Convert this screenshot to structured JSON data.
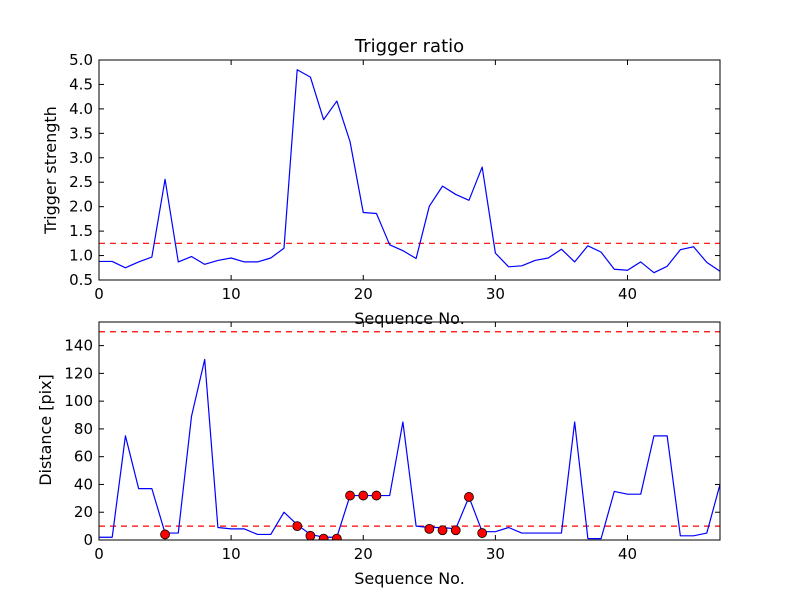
{
  "chart_data": [
    {
      "type": "line",
      "title": "Trigger ratio",
      "xlabel": "Sequence No.",
      "ylabel": "Trigger strength",
      "xlim": [
        0,
        47
      ],
      "ylim": [
        0.5,
        5.0
      ],
      "x_ticks": [
        "0",
        "10",
        "20",
        "30",
        "40"
      ],
      "y_ticks": [
        "0.5",
        "1.0",
        "1.5",
        "2.0",
        "2.5",
        "3.0",
        "3.5",
        "4.0",
        "4.5",
        "5.0"
      ],
      "grid": false,
      "series": [
        {
          "color": "#0000ff",
          "x": [
            0,
            1,
            2,
            3,
            4,
            5,
            6,
            7,
            8,
            9,
            10,
            11,
            12,
            13,
            14,
            15,
            16,
            17,
            18,
            19,
            20,
            21,
            22,
            23,
            24,
            25,
            26,
            27,
            28,
            29,
            30,
            31,
            32,
            33,
            34,
            35,
            36,
            37,
            38,
            39,
            40,
            41,
            42,
            43,
            44,
            45,
            46,
            47
          ],
          "values": [
            0.88,
            0.88,
            0.75,
            0.87,
            0.97,
            2.56,
            0.87,
            0.98,
            0.82,
            0.9,
            0.95,
            0.87,
            0.87,
            0.95,
            1.15,
            4.8,
            4.65,
            3.78,
            4.16,
            3.33,
            1.88,
            1.86,
            1.22,
            1.1,
            0.94,
            2.01,
            2.42,
            2.25,
            2.13,
            2.81,
            1.05,
            0.77,
            0.79,
            0.9,
            0.95,
            1.13,
            0.87,
            1.2,
            1.07,
            0.72,
            0.7,
            0.87,
            0.65,
            0.78,
            1.12,
            1.18,
            0.86,
            0.68
          ]
        }
      ],
      "thresholds": [
        {
          "value": 1.25,
          "color": "#ff0000",
          "style": "dashed"
        }
      ]
    },
    {
      "type": "line",
      "title": "",
      "xlabel": "Sequence No.",
      "ylabel": "Distance [pix]",
      "xlim": [
        0,
        47
      ],
      "ylim": [
        0,
        157
      ],
      "x_ticks": [
        "0",
        "10",
        "20",
        "30",
        "40"
      ],
      "y_ticks": [
        "0",
        "20",
        "40",
        "60",
        "80",
        "100",
        "120",
        "140"
      ],
      "grid": false,
      "series": [
        {
          "color": "#0000ff",
          "x": [
            0,
            1,
            2,
            3,
            4,
            5,
            6,
            7,
            8,
            9,
            10,
            11,
            12,
            13,
            14,
            15,
            16,
            17,
            18,
            19,
            20,
            21,
            22,
            23,
            24,
            25,
            26,
            27,
            28,
            29,
            30,
            31,
            32,
            33,
            34,
            35,
            36,
            37,
            38,
            39,
            40,
            41,
            42,
            43,
            44,
            45,
            46,
            47
          ],
          "values": [
            2,
            2,
            75,
            37,
            37,
            5,
            5,
            89,
            130,
            9,
            8,
            8,
            4,
            4,
            20,
            11,
            4,
            2,
            2,
            32,
            32,
            32,
            32,
            85,
            10,
            9,
            9,
            8,
            31,
            6,
            6,
            9,
            5,
            5,
            5,
            5,
            85,
            1,
            1,
            35,
            33,
            33,
            75,
            75,
            3,
            3,
            5,
            40
          ]
        }
      ],
      "markers": {
        "color": "#ff0000",
        "x": [
          5,
          15,
          16,
          17,
          18,
          19,
          20,
          21,
          25,
          26,
          27,
          28,
          29
        ],
        "values": [
          4,
          10,
          3,
          1,
          1,
          32,
          32,
          32,
          8,
          7,
          7,
          31,
          5
        ]
      },
      "thresholds": [
        {
          "value": 150,
          "color": "#ff0000",
          "style": "dashed"
        },
        {
          "value": 10,
          "color": "#ff0000",
          "style": "dashed"
        }
      ]
    }
  ]
}
